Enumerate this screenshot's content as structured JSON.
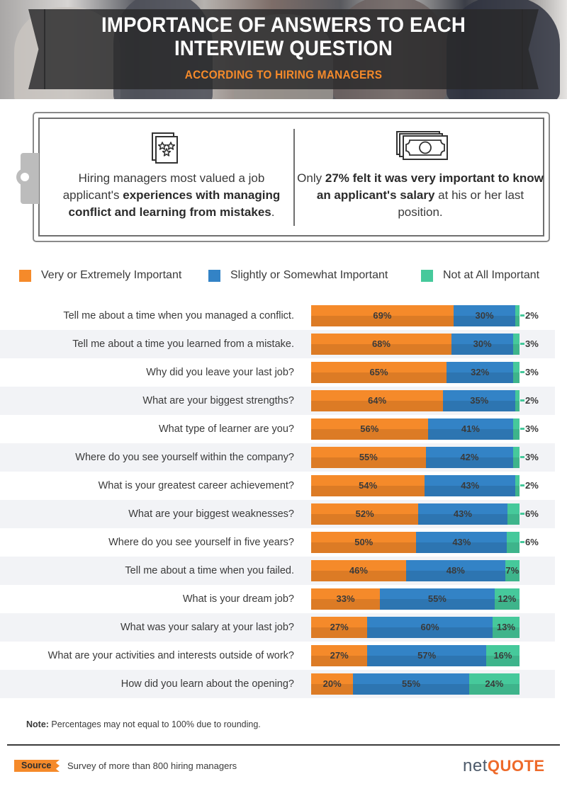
{
  "header": {
    "title_line1": "IMPORTANCE OF ANSWERS TO EACH",
    "title_line2": "INTERVIEW QUESTION",
    "subtitle": "ACCORDING TO HIRING MANAGERS"
  },
  "callouts": [
    {
      "icon": "stars-certificate-icon",
      "segments": [
        {
          "text": "Hiring managers most valued a job applicant's ",
          "bold": false
        },
        {
          "text": "experiences with managing conflict and learning from mistakes",
          "bold": true
        },
        {
          "text": ".",
          "bold": false
        }
      ]
    },
    {
      "icon": "money-bills-icon",
      "segments": [
        {
          "text": "Only ",
          "bold": false
        },
        {
          "text": "27% felt it was very important to know an applicant's salary",
          "bold": true
        },
        {
          "text": " at his or her last position.",
          "bold": false
        }
      ]
    }
  ],
  "colors": {
    "very": "#f58a2a",
    "slightly": "#3383c6",
    "not_at_all": "#46c99b",
    "row_alt": "#f2f3f6",
    "accent": "#f58a2a"
  },
  "chart_data": {
    "type": "bar",
    "orientation": "horizontal",
    "stacked": true,
    "title": "Importance of Answers to Each Interview Question",
    "subtitle": "According to Hiring Managers",
    "xlabel": "",
    "ylabel": "",
    "xlim": [
      0,
      100
    ],
    "unit": "%",
    "legend_position": "top",
    "categories": [
      "Tell me about a time when you managed a conflict.",
      "Tell me about a time you learned from a mistake.",
      "Why did you leave your last job?",
      "What are your biggest strengths?",
      "What type of learner are you?",
      "Where do you see yourself within the company?",
      "What is your greatest career achievement?",
      "What are your biggest weaknesses?",
      "Where do you see yourself in five years?",
      "Tell me about a time when you failed.",
      "What is your dream job?",
      "What was your salary at your last job?",
      "What are your activities and interests outside of work?",
      "How did you learn about the opening?"
    ],
    "series": [
      {
        "name": "Very or Extremely Important",
        "key": "very",
        "values": [
          69,
          68,
          65,
          64,
          56,
          55,
          54,
          52,
          50,
          46,
          33,
          27,
          27,
          20
        ]
      },
      {
        "name": "Slightly or Somewhat Important",
        "key": "slightly",
        "values": [
          30,
          30,
          32,
          35,
          41,
          42,
          43,
          43,
          43,
          48,
          55,
          60,
          57,
          55
        ]
      },
      {
        "name": "Not at All Important",
        "key": "not_at_all",
        "values": [
          2,
          3,
          3,
          2,
          3,
          3,
          2,
          6,
          6,
          7,
          12,
          13,
          16,
          24
        ]
      }
    ],
    "note": "Percentages may not equal to 100% due to rounding."
  },
  "footer": {
    "note_label": "Note:",
    "note_text": " Percentages may not equal to 100% due to rounding.",
    "source_label": "Source",
    "source_text": "Survey of more than 800 hiring managers",
    "logo_part1": "net",
    "logo_part2": "QUOTE"
  }
}
